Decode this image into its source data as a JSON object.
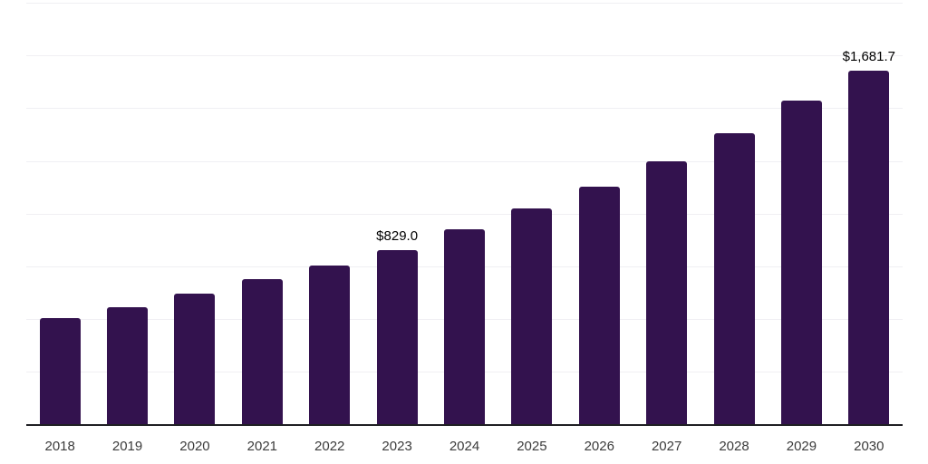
{
  "chart_data": {
    "type": "bar",
    "title": "",
    "xlabel": "",
    "ylabel": "",
    "categories": [
      "2018",
      "2019",
      "2020",
      "2021",
      "2022",
      "2023",
      "2024",
      "2025",
      "2026",
      "2027",
      "2028",
      "2029",
      "2030"
    ],
    "values": [
      508,
      560,
      624,
      693,
      757,
      829.0,
      927,
      1028,
      1131,
      1251,
      1383,
      1537,
      1681.7
    ],
    "data_labels": [
      {
        "category": "2023",
        "text": "$829.0"
      },
      {
        "category": "2030",
        "text": "$1,681.7"
      }
    ],
    "ylim": [
      0,
      2000
    ],
    "gridline_step": 250,
    "grid": true,
    "legend": false,
    "colors": {
      "bar": "#33124E",
      "gridline": "#F0EFF3",
      "axis_line": "#1F1F23",
      "tick_label": "#3B3B3B",
      "data_label": "#000000",
      "background": "#FFFFFF"
    }
  }
}
